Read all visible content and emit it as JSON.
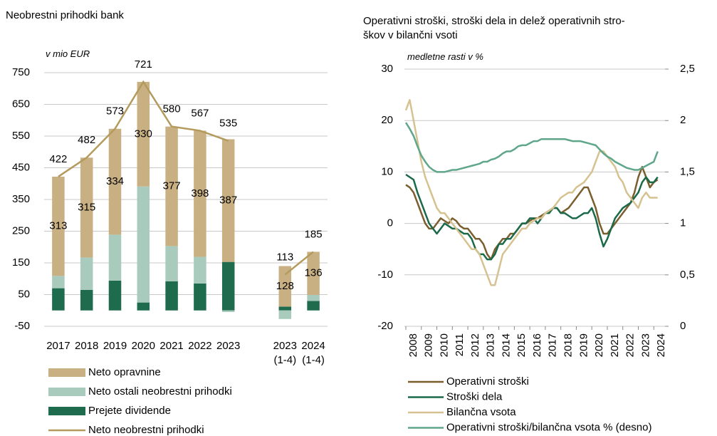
{
  "chart_data": [
    {
      "type": "bar",
      "stacked": true,
      "title": "Neobrestni prihodki bank",
      "subtitle": "v mio EUR",
      "categories": [
        "2017",
        "2018",
        "2019",
        "2020",
        "2021",
        "2022",
        "2023",
        null,
        "2023\n(1-4)",
        "2024\n(1-4)"
      ],
      "series": [
        {
          "name": "Prejete dividende",
          "color": "#1f6b4e",
          "values": [
            70,
            65,
            94,
            25,
            92,
            85,
            153,
            null,
            12,
            30
          ]
        },
        {
          "name": "Neto ostali neobrestni prihodki",
          "color": "#a9cbbe",
          "values": [
            39,
            102,
            145,
            366,
            111,
            84,
            -5,
            null,
            -27,
            19
          ]
        },
        {
          "name": "Neto opravnine",
          "color": "#c9b083",
          "values": [
            313,
            315,
            334,
            330,
            377,
            398,
            387,
            null,
            128,
            136
          ],
          "labels": true
        },
        {
          "name": "Neto neobrestni prihodki",
          "type": "line",
          "color": "#b49a5c",
          "values": [
            422,
            482,
            573,
            721,
            580,
            567,
            535,
            null,
            113,
            185
          ],
          "labels": true
        }
      ],
      "ylim": [
        -50,
        750
      ],
      "yticks": [
        -50,
        50,
        150,
        250,
        350,
        450,
        550,
        650,
        750
      ],
      "grid": true
    },
    {
      "type": "line",
      "title": "Operativni stroški, stroški dela in delež operativnih stro-\nškov v bilančni vsoti",
      "subtitle": "medletne rasti v %",
      "x": [
        2008,
        2008.25,
        2008.5,
        2008.75,
        2009,
        2009.25,
        2009.5,
        2009.75,
        2010,
        2010.25,
        2010.5,
        2010.75,
        2011,
        2011.25,
        2011.5,
        2011.75,
        2012,
        2012.25,
        2012.5,
        2012.75,
        2013,
        2013.25,
        2013.5,
        2013.75,
        2014,
        2014.25,
        2014.5,
        2014.75,
        2015,
        2015.25,
        2015.5,
        2015.75,
        2016,
        2016.25,
        2016.5,
        2016.75,
        2017,
        2017.25,
        2017.5,
        2017.75,
        2018,
        2018.25,
        2018.5,
        2018.75,
        2019,
        2019.25,
        2019.5,
        2019.75,
        2020,
        2020.25,
        2020.5,
        2020.75,
        2021,
        2021.25,
        2021.5,
        2021.75,
        2022,
        2022.25,
        2022.5,
        2022.75,
        2023,
        2023.25,
        2023.5,
        2023.75,
        2024,
        2024.25
      ],
      "xlim": [
        2008,
        2025
      ],
      "xticks": [
        2008,
        2009,
        2010,
        2011,
        2012,
        2013,
        2014,
        2015,
        2016,
        2017,
        2018,
        2019,
        2020,
        2021,
        2022,
        2023,
        2024
      ],
      "ylim": [
        -20,
        30
      ],
      "yticks": [
        -20,
        -10,
        0,
        10,
        20,
        30
      ],
      "y2lim": [
        0,
        2.5
      ],
      "y2ticks": [
        0,
        {
          "value": 0.5,
          "label": "0,5"
        },
        1,
        {
          "value": 1.5,
          "label": "1,5"
        },
        2,
        {
          "value": 2.5,
          "label": "2,5"
        }
      ],
      "grid": true,
      "series": [
        {
          "name": "Operativni stroški",
          "color": "#7b5e2e",
          "values": [
            7.5,
            7,
            6,
            4,
            2,
            0,
            -1,
            -1,
            0,
            1,
            0.5,
            0,
            1,
            0.5,
            -0.5,
            -1,
            -1,
            -2,
            -3,
            -3,
            -4,
            -6,
            -7,
            -5,
            -4,
            -3,
            -3,
            -2,
            -2,
            -1,
            0,
            0,
            0.5,
            1,
            1,
            1.5,
            2,
            2.5,
            3,
            3,
            2,
            2.5,
            3,
            4,
            5,
            6,
            7,
            7,
            5,
            3,
            0,
            -2,
            -2,
            -1,
            0,
            1,
            2,
            3,
            4,
            6,
            9,
            11,
            9,
            7,
            8,
            8.5
          ]
        },
        {
          "name": "Stroški dela",
          "color": "#1a6a4a",
          "values": [
            9.5,
            9,
            8.5,
            6,
            4,
            2,
            0,
            -1,
            -2,
            -1,
            0,
            -0.5,
            -1,
            -1,
            -1.5,
            -2,
            -2,
            -3,
            -5,
            -6,
            -6,
            -7,
            -7,
            -6,
            -4,
            -4,
            -3,
            -3,
            -2,
            -1,
            0,
            0,
            1,
            1,
            0,
            1,
            2,
            2,
            3,
            3,
            2,
            2,
            1.5,
            1,
            1,
            1.5,
            2,
            2,
            3,
            1,
            -2,
            -4.5,
            -3,
            -1,
            1,
            2,
            3,
            3.5,
            4,
            5,
            6,
            8,
            9,
            8,
            8,
            9
          ]
        },
        {
          "name": "Bilančna vsota",
          "color": "#d6c290",
          "values": [
            22,
            24,
            20,
            16,
            12,
            9,
            7,
            5,
            3,
            2,
            2,
            1,
            0,
            -1,
            -2,
            -3,
            -4,
            -5,
            -5,
            -6,
            -8,
            -10,
            -12,
            -12,
            -9,
            -6,
            -5,
            -4,
            -3,
            -2,
            -1,
            -1,
            0,
            0.5,
            1,
            1,
            2,
            2.5,
            3,
            4,
            5,
            5.5,
            6,
            6,
            7,
            7.5,
            8,
            9,
            10,
            12,
            14,
            14,
            13,
            12,
            11,
            9,
            8,
            6,
            5,
            4,
            3,
            5,
            6,
            5,
            5,
            5
          ]
        },
        {
          "name": "Operativni stroški/bilančna vsota  % (desno)",
          "color": "#5fa68a",
          "axis": "y2",
          "values": [
            1.98,
            1.92,
            1.85,
            1.75,
            1.66,
            1.6,
            1.55,
            1.52,
            1.5,
            1.5,
            1.5,
            1.51,
            1.52,
            1.52,
            1.53,
            1.54,
            1.55,
            1.56,
            1.57,
            1.58,
            1.6,
            1.6,
            1.62,
            1.63,
            1.65,
            1.68,
            1.7,
            1.7,
            1.72,
            1.75,
            1.76,
            1.76,
            1.78,
            1.8,
            1.8,
            1.82,
            1.82,
            1.82,
            1.82,
            1.82,
            1.82,
            1.82,
            1.81,
            1.8,
            1.8,
            1.8,
            1.79,
            1.78,
            1.77,
            1.76,
            1.72,
            1.68,
            1.65,
            1.63,
            1.6,
            1.58,
            1.56,
            1.54,
            1.53,
            1.52,
            1.52,
            1.54,
            1.56,
            1.58,
            1.6,
            1.7
          ]
        }
      ]
    }
  ]
}
